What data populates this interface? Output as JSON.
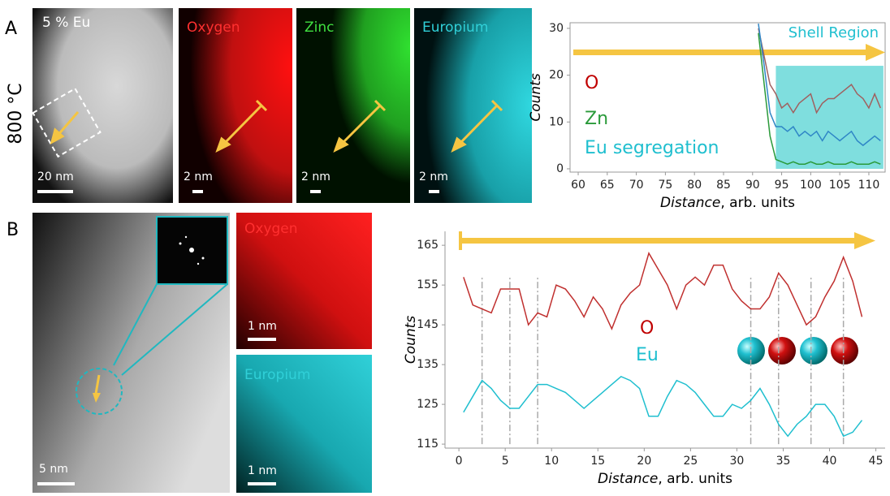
{
  "panels": {
    "label_a": "A",
    "label_b": "B",
    "temperature": "800 °C",
    "a_images": [
      "5 % Eu",
      "Oxygen",
      "Zinc",
      "Europium"
    ],
    "a_scales": [
      "20 nm",
      "2 nm",
      "2 nm",
      "2 nm"
    ],
    "b_images": [
      "Oxygen",
      "Europium"
    ],
    "b_scales": [
      "5 nm",
      "1 nm",
      "1 nm"
    ]
  },
  "chart_data": [
    {
      "type": "line",
      "ylabel": "Counts",
      "xlabel": "Distance",
      "xlabel_unit": ", arb. units",
      "xlim": [
        58.6,
        112.8
      ],
      "ylim": [
        -0.7,
        31.2
      ],
      "xticks": [
        60,
        65,
        70,
        75,
        80,
        85,
        90,
        95,
        100,
        105,
        110
      ],
      "yticks": [
        0,
        10,
        20,
        30
      ],
      "shade": {
        "label": "Shell Region",
        "color": "#7fdede",
        "xlim": [
          94,
          112.5
        ],
        "ylim": [
          0,
          22
        ]
      },
      "x": [
        91,
        92,
        93,
        94,
        95,
        96,
        97,
        98,
        99,
        100,
        101,
        102,
        103,
        104,
        105,
        106,
        107,
        108,
        109,
        110,
        111,
        112
      ],
      "series": [
        {
          "name": "O",
          "color": "#a0605f",
          "legend_color": "#c00000",
          "values": [
            30,
            24,
            18,
            16,
            13,
            14,
            12,
            14,
            15,
            16,
            12,
            14,
            15,
            15,
            16,
            17,
            18,
            16,
            15,
            13,
            16,
            13
          ]
        },
        {
          "name": "Zn",
          "color": "#2a9a3a",
          "legend_color": "#2a9a3a",
          "values": [
            29,
            18,
            7,
            2,
            1.5,
            1,
            1.5,
            1,
            1,
            1.5,
            1,
            1,
            1.5,
            1,
            1,
            1,
            1.5,
            1,
            1,
            1,
            1.5,
            1
          ]
        },
        {
          "name": "Eu segregation",
          "color": "#2f86c6",
          "legend_color": "#1fbfcf",
          "values": [
            31,
            22,
            12,
            9,
            9,
            8,
            9,
            7,
            8,
            7,
            8,
            6,
            8,
            7,
            6,
            7,
            8,
            6,
            5,
            6,
            7,
            6
          ]
        }
      ]
    },
    {
      "type": "line",
      "ylabel": "Counts",
      "xlabel": "Distance",
      "xlabel_unit": ", arb. units",
      "xlim": [
        -1.5,
        46
      ],
      "ylim": [
        114,
        168.5
      ],
      "xticks": [
        0,
        5,
        10,
        15,
        20,
        25,
        30,
        35,
        40,
        45
      ],
      "yticks": [
        115,
        125,
        135,
        145,
        155,
        165
      ],
      "vlines": [
        2.5,
        5.5,
        8.5,
        31.5,
        34.5,
        38,
        41.5
      ],
      "x": [
        0.5,
        1.5,
        2.5,
        3.5,
        4.5,
        5.5,
        6.5,
        7.5,
        8.5,
        9.5,
        10.5,
        11.5,
        12.5,
        13.5,
        14.5,
        15.5,
        16.5,
        17.5,
        18.5,
        19.5,
        20.5,
        21.5,
        22.5,
        23.5,
        24.5,
        25.5,
        26.5,
        27.5,
        28.5,
        29.5,
        30.5,
        31.5,
        32.5,
        33.5,
        34.5,
        35.5,
        36.5,
        37.5,
        38.5,
        39.5,
        40.5,
        41.5,
        42.5,
        43.5
      ],
      "series": [
        {
          "name": "O",
          "color": "#c0302f",
          "legend_color": "#c00000",
          "values": [
            157,
            150,
            149,
            148,
            154,
            154,
            154,
            145,
            148,
            147,
            155,
            154,
            151,
            147,
            152,
            149,
            144,
            150,
            153,
            155,
            163,
            159,
            155,
            149,
            155,
            157,
            155,
            160,
            160,
            154,
            151,
            149,
            149,
            152,
            158,
            155,
            150,
            145,
            147,
            152,
            156,
            162,
            156,
            147
          ]
        },
        {
          "name": "Eu",
          "color": "#1fbfcf",
          "legend_color": "#1fbfcf",
          "values": [
            123,
            127,
            131,
            129,
            126,
            124,
            124,
            127,
            130,
            130,
            129,
            128,
            126,
            124,
            126,
            128,
            130,
            132,
            131,
            129,
            122,
            122,
            127,
            131,
            130,
            128,
            125,
            122,
            122,
            125,
            124,
            126,
            129,
            125,
            120,
            117,
            120,
            122,
            125,
            125,
            122,
            117,
            118,
            121
          ]
        }
      ]
    }
  ]
}
